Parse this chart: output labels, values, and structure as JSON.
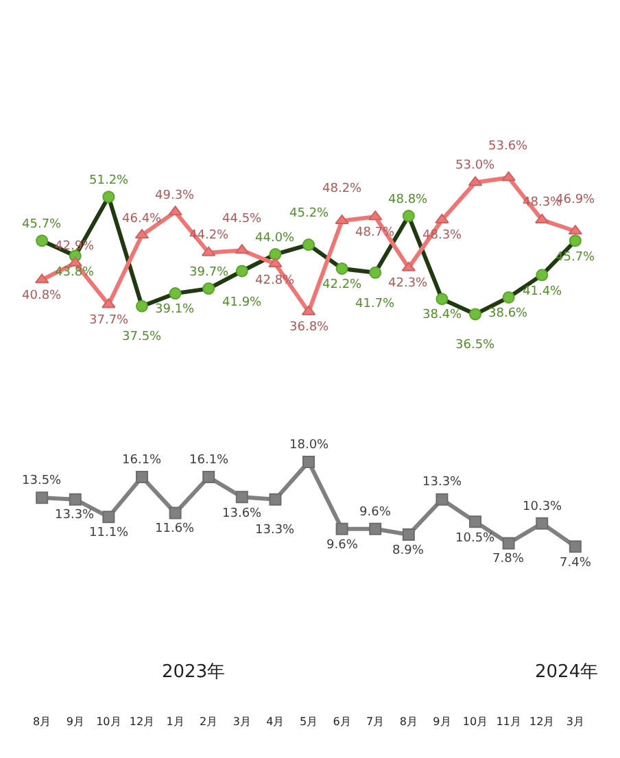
{
  "chart_data": {
    "type": "line",
    "categories": [
      "8月",
      "9月",
      "10月",
      "12月",
      "1月",
      "2月",
      "3月",
      "4月",
      "5月",
      "6月",
      "7月",
      "8月",
      "9月",
      "10月",
      "11月",
      "12月",
      "3月"
    ],
    "series": [
      {
        "color": "#6fbf3a",
        "marker": "circle",
        "values": [
          45.7,
          43.8,
          51.2,
          37.5,
          39.1,
          39.7,
          41.9,
          44.0,
          45.2,
          42.2,
          41.7,
          48.8,
          38.4,
          36.5,
          38.6,
          41.4,
          45.7
        ],
        "value_labels": [
          "45.7%",
          "43.8%",
          "51.2%",
          "37.5%",
          "39.1%",
          "39.7%",
          "41.9%",
          "44.0%",
          "45.2%",
          "42.2%",
          "41.7%",
          "48.8%",
          "38.4%",
          "36.5%",
          "38.6%",
          "41.4%",
          "45.7%"
        ]
      },
      {
        "color": "#f07575",
        "marker": "triangle",
        "values": [
          40.8,
          42.9,
          37.7,
          46.4,
          49.3,
          44.2,
          44.5,
          42.8,
          36.8,
          48.2,
          48.7,
          42.3,
          48.3,
          53.0,
          53.6,
          48.3,
          46.9
        ],
        "value_labels": [
          "40.8%",
          "42.9%",
          "37.7%",
          "46.4%",
          "49.3%",
          "44.2%",
          "44.5%",
          "42.8%",
          "36.8%",
          "48.2%",
          "48.7%",
          "42.3%",
          "48.3%",
          "53.0%",
          "53.6%",
          "48.3%",
          "46.9%"
        ]
      },
      {
        "color": "#808080",
        "marker": "square",
        "values": [
          13.5,
          13.3,
          11.1,
          16.1,
          11.6,
          16.1,
          13.6,
          13.3,
          18.0,
          9.6,
          9.6,
          8.9,
          13.3,
          10.5,
          7.8,
          10.3,
          7.4
        ],
        "value_labels": [
          "13.5%",
          "13.3%",
          "11.1%",
          "16.1%",
          "11.6%",
          "16.1%",
          "13.6%",
          "13.3%",
          "18.0%",
          "9.6%",
          "9.6%",
          "8.9%",
          "13.3%",
          "10.5%",
          "7.8%",
          "10.3%",
          "7.4%"
        ]
      }
    ],
    "annotations": [
      "2023年",
      "2024年"
    ],
    "tick_labels": "x"
  }
}
